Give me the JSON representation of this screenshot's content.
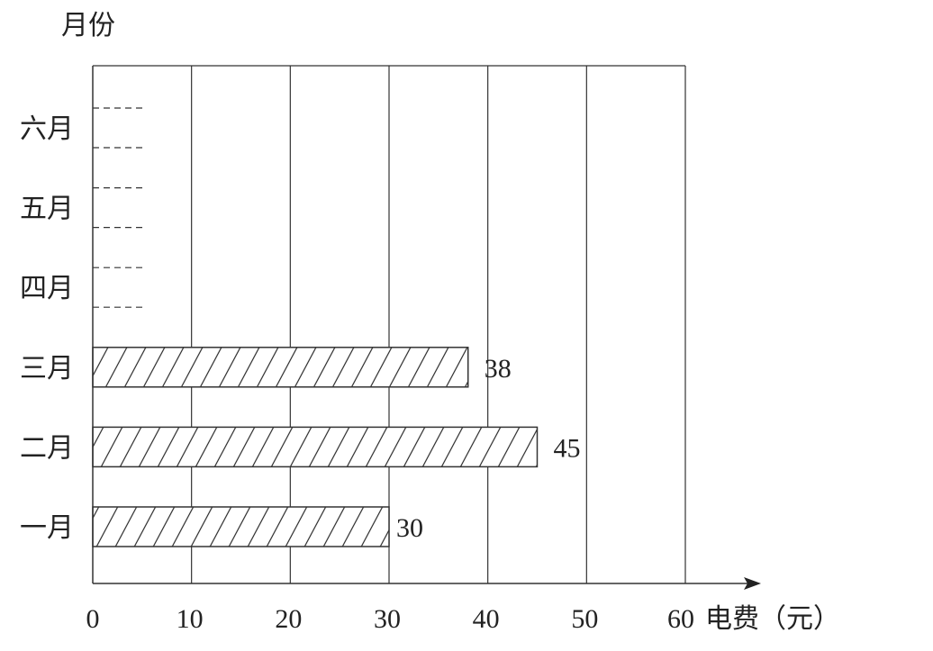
{
  "chart_data": {
    "type": "bar",
    "orientation": "horizontal",
    "title": "",
    "xlabel": "电费（元）",
    "ylabel": "月份",
    "xlim": [
      0,
      60
    ],
    "xticks": [
      0,
      10,
      20,
      30,
      40,
      50,
      60
    ],
    "xtick_labels": [
      "0",
      "10",
      "20",
      "30",
      "40",
      "50",
      "60"
    ],
    "categories": [
      "一月",
      "二月",
      "三月",
      "四月",
      "五月",
      "六月"
    ],
    "values": [
      30,
      45,
      38,
      null,
      null,
      null
    ],
    "value_labels": [
      "30",
      "45",
      "38",
      "",
      "",
      ""
    ],
    "empty_categories_style": "dashed placeholder",
    "bar_fill": "diagonal hatch",
    "grid": "vertical",
    "colors": {
      "line": "#222222",
      "background": "#ffffff"
    }
  }
}
